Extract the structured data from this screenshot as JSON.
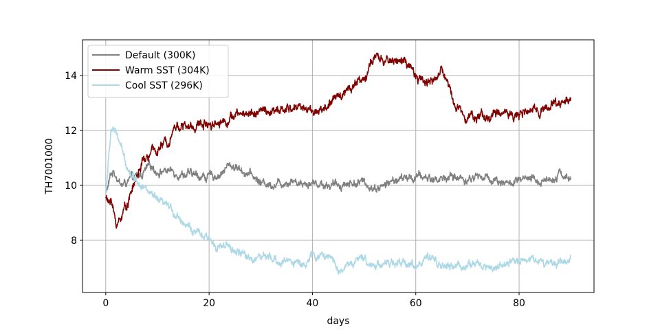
{
  "chart_data": {
    "type": "line",
    "xlabel": "days",
    "ylabel": "TH7001000",
    "xlim": [
      -4.5,
      94.5
    ],
    "ylim": [
      6.1,
      15.3
    ],
    "xticks": [
      0,
      20,
      40,
      60,
      80
    ],
    "yticks": [
      8,
      10,
      12,
      14
    ],
    "grid": true,
    "legend_position": "upper left",
    "series": [
      {
        "name": "Default (300K)",
        "color": "#808080",
        "noise": 0.13,
        "x": [
          0,
          0.5,
          1,
          1.5,
          2,
          2.5,
          3,
          3.5,
          4,
          5,
          6,
          7,
          8,
          9,
          10,
          12,
          14,
          16,
          18,
          20,
          22,
          23,
          24,
          26,
          28,
          30,
          32,
          34,
          36,
          38,
          40,
          42,
          44,
          46,
          48,
          50,
          52,
          54,
          56,
          58,
          60,
          62,
          64,
          66,
          68,
          70,
          72,
          74,
          76,
          78,
          80,
          82,
          84,
          86,
          88,
          90
        ],
        "y": [
          9.7,
          10.0,
          10.4,
          10.5,
          10.4,
          10.2,
          10.0,
          10.05,
          10.1,
          10.2,
          10.3,
          10.4,
          10.6,
          10.7,
          10.5,
          10.55,
          10.45,
          10.4,
          10.35,
          10.3,
          10.4,
          10.55,
          10.75,
          10.6,
          10.4,
          10.1,
          10.05,
          10.1,
          10.2,
          10.1,
          10.1,
          10.05,
          10.0,
          10.05,
          10.1,
          10.1,
          9.9,
          10.0,
          10.2,
          10.25,
          10.3,
          10.3,
          10.2,
          10.3,
          10.3,
          10.2,
          10.35,
          10.25,
          10.2,
          10.05,
          10.15,
          10.2,
          10.15,
          10.25,
          10.45,
          10.2
        ]
      },
      {
        "name": "Warm SST (304K)",
        "color": "#800000",
        "noise": 0.15,
        "x": [
          0,
          0.5,
          1,
          1.5,
          2,
          2.5,
          3,
          4,
          5,
          6,
          7,
          8,
          9,
          10,
          12,
          13,
          14,
          16,
          18,
          20,
          22,
          24,
          26,
          28,
          30,
          32,
          34,
          36,
          38,
          40,
          42,
          44,
          45,
          46,
          48,
          50,
          51,
          52,
          53,
          54,
          56,
          58,
          59,
          60,
          61,
          62,
          64,
          65,
          66,
          67,
          68,
          70,
          72,
          74,
          76,
          78,
          80,
          82,
          84,
          86,
          88,
          90
        ],
        "y": [
          9.6,
          9.3,
          9.6,
          9.0,
          8.6,
          8.7,
          8.9,
          9.3,
          9.8,
          10.3,
          10.8,
          11.0,
          11.2,
          11.3,
          11.6,
          12.1,
          12.2,
          12.1,
          12.2,
          12.3,
          12.3,
          12.45,
          12.6,
          12.65,
          12.7,
          12.65,
          12.7,
          12.8,
          12.9,
          12.7,
          12.75,
          13.0,
          13.3,
          13.4,
          13.7,
          13.9,
          14.3,
          14.6,
          14.55,
          14.5,
          14.6,
          14.5,
          14.2,
          13.9,
          13.8,
          13.8,
          13.9,
          14.2,
          13.8,
          13.3,
          12.8,
          12.6,
          12.5,
          12.5,
          12.6,
          12.7,
          12.55,
          12.65,
          12.8,
          12.9,
          13.0,
          13.2
        ]
      },
      {
        "name": "Cool SST (296K)",
        "color": "#add8e6",
        "noise": 0.13,
        "x": [
          0,
          0.5,
          1,
          1.5,
          2,
          2.5,
          3,
          4,
          5,
          6,
          7,
          8,
          9,
          10,
          12,
          14,
          16,
          18,
          20,
          22,
          24,
          26,
          28,
          30,
          32,
          34,
          36,
          38,
          40,
          42,
          44,
          45,
          46,
          48,
          50,
          52,
          54,
          56,
          58,
          60,
          62,
          64,
          66,
          68,
          70,
          72,
          74,
          76,
          78,
          80,
          82,
          84,
          86,
          88,
          90
        ],
        "y": [
          9.7,
          10.8,
          12.0,
          12.1,
          11.8,
          11.7,
          11.3,
          10.8,
          10.4,
          10.2,
          10.1,
          9.8,
          9.6,
          9.4,
          9.2,
          8.9,
          8.5,
          8.2,
          8.0,
          7.8,
          7.7,
          7.5,
          7.35,
          7.4,
          7.3,
          7.2,
          7.3,
          7.1,
          7.4,
          7.45,
          7.3,
          6.95,
          7.0,
          7.2,
          7.3,
          7.1,
          7.2,
          7.1,
          7.2,
          7.1,
          7.3,
          7.2,
          7.0,
          7.05,
          7.1,
          7.15,
          7.0,
          7.05,
          7.1,
          7.3,
          7.35,
          7.25,
          7.2,
          7.2,
          7.4
        ]
      }
    ]
  }
}
